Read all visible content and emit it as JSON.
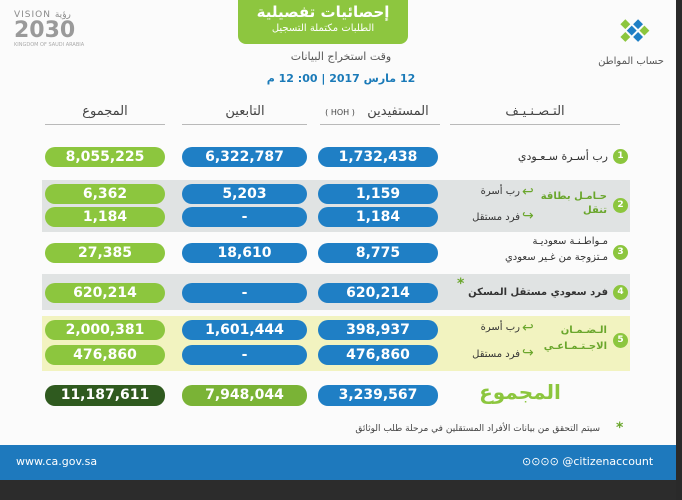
{
  "header": {
    "title": "إحصائيات تفصيلية",
    "subtitle": "الطلبات مكتملة التسجيل",
    "time_label": "وقت استخراج البيانات",
    "time_value": "12 مارس 2017 | 00: 12 م"
  },
  "vision": {
    "line1": "VISION رؤية",
    "line2": "2030",
    "line3": "KINGDOM OF SAUDI ARABIA"
  },
  "logo": {
    "text": "حساب المواطن",
    "icon": "diamond-dots-icon"
  },
  "columns": {
    "category": "التـصـنـيـف",
    "beneficiaries": "المستفيدين",
    "hoh": "( HOH )",
    "dependents": "التابعين",
    "total": "المجموع"
  },
  "rows": [
    {
      "num": "1",
      "label": "رب أسـرة سـعـودي",
      "beneficiaries": "1,732,438",
      "dependents": "6,322,787",
      "total": "8,055,225"
    },
    {
      "num": "2",
      "label": "حـامـل بطاقة تنقل",
      "sub1": "رب أسرة",
      "sub2": "فرد مستقل",
      "beneficiaries_a": "1,159",
      "dependents_a": "5,203",
      "total_a": "6,362",
      "beneficiaries_b": "1,184",
      "dependents_b": "-",
      "total_b": "1,184"
    },
    {
      "num": "3",
      "label_line1": "مـواطـنـة سعوديـة",
      "label_line2": "مـتزوجة من غـير سعودي",
      "beneficiaries": "8,775",
      "dependents": "18,610",
      "total": "27,385"
    },
    {
      "num": "4",
      "label": "فرد سعودي مستقل المسكن",
      "beneficiaries": "620,214",
      "dependents": "-",
      "total": "620,214"
    },
    {
      "num": "5",
      "label_line1": "الـضـمـان",
      "label_line2": "الاجـتـمـاعـي",
      "sub1": "رب أسرة",
      "sub2": "فرد مستقل",
      "beneficiaries_a": "398,937",
      "dependents_a": "1,601,444",
      "total_a": "2,000,381",
      "beneficiaries_b": "476,860",
      "dependents_b": "-",
      "total_b": "476,860"
    }
  ],
  "totals": {
    "label": "المجموع",
    "beneficiaries": "3,239,567",
    "dependents": "7,948,044",
    "total": "11,187,611"
  },
  "footnote": "سيتم التحقق من بيانات الأفراد المستقلين في مرحلة طلب الوثائق",
  "footer": {
    "site": "www.ca.gov.sa",
    "social": "@citizenaccount"
  },
  "colors": {
    "green": "#8cc63e",
    "blue": "#1f7fc5",
    "dark_green": "#2f5a1f",
    "footer_blue": "#1e79bd"
  }
}
